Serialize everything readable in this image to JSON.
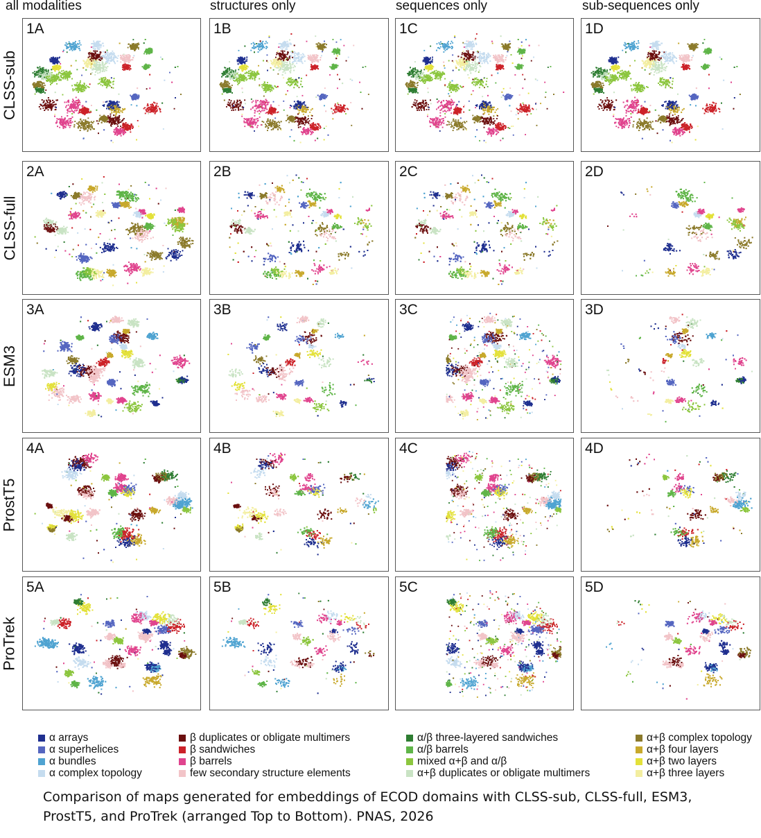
{
  "columns": [
    "all modalities",
    "structures only",
    "sequences only",
    "sub-sequences only"
  ],
  "rows": [
    {
      "label": "CLSS-sub",
      "panels": [
        "1A",
        "1B",
        "1C",
        "1D"
      ]
    },
    {
      "label": "CLSS-full",
      "panels": [
        "2A",
        "2B",
        "2C",
        "2D"
      ]
    },
    {
      "label": "ESM3",
      "panels": [
        "3A",
        "3B",
        "3C",
        "3D"
      ]
    },
    {
      "label": "ProstT5",
      "panels": [
        "4A",
        "4B",
        "4C",
        "4D"
      ]
    },
    {
      "label": "ProTrek",
      "panels": [
        "5A",
        "5B",
        "5C",
        "5D"
      ]
    }
  ],
  "legend": [
    {
      "label": "α arrays",
      "color": "#1f2f8f"
    },
    {
      "label": "α superhelices",
      "color": "#5566c0"
    },
    {
      "label": "α bundles",
      "color": "#4fa3d1"
    },
    {
      "label": "α complex topology",
      "color": "#c5dcef"
    },
    {
      "label": "β duplicates or obligate multimers",
      "color": "#6b0f0f"
    },
    {
      "label": "β sandwiches",
      "color": "#cc2229"
    },
    {
      "label": "β barrels",
      "color": "#e0448e"
    },
    {
      "label": "few secondary structure elements",
      "color": "#f2c4c8"
    },
    {
      "label": "α/β three-layered sandwiches",
      "color": "#2e7d32"
    },
    {
      "label": "α/β barrels",
      "color": "#5fb548"
    },
    {
      "label": "mixed α+β and α/β",
      "color": "#8cc63f"
    },
    {
      "label": "α+β duplicates or obligate multimers",
      "color": "#c9e3c4"
    },
    {
      "label": "α+β complex topology",
      "color": "#8b7a2b"
    },
    {
      "label": "α+β four layers",
      "color": "#c8a92c"
    },
    {
      "label": "α+β two layers",
      "color": "#e3e13a"
    },
    {
      "label": "α+β three layers",
      "color": "#f3eea0"
    }
  ],
  "caption": "Comparison of maps generated for embeddings of ECOD domains with CLSS-sub, CLSS-full, ESM3, ProstT5, and ProTrek (arranged Top to Bottom). PNAS, 2026"
}
